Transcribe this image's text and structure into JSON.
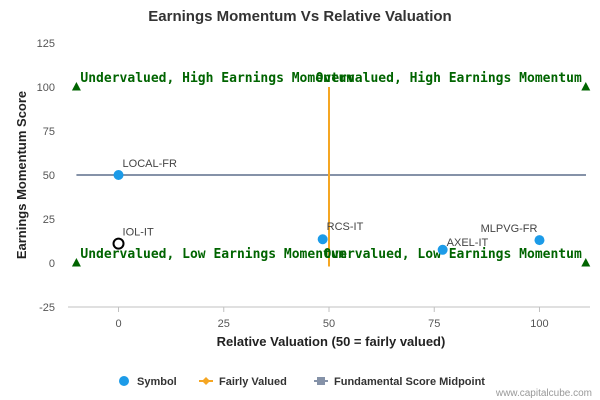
{
  "chart_data": {
    "type": "scatter",
    "title": "Earnings Momentum Vs Relative Valuation",
    "xlabel": "Relative Valuation (50 = fairly valued)",
    "ylabel": "Earnings Momentum Score",
    "xlim": [
      -12,
      112
    ],
    "ylim": [
      -25,
      125
    ],
    "x_ticks": [
      0,
      25,
      50,
      75,
      100
    ],
    "y_ticks": [
      -25,
      0,
      25,
      50,
      75,
      100,
      125
    ],
    "grid": false,
    "legend_position": "bottom-center",
    "colors": {
      "symbol": "#1c9be8",
      "fairly_valued": "#f5a623",
      "midpoint": "#8592a8",
      "quadrant_text": "#006400",
      "triangle": "#006400"
    },
    "points": [
      {
        "label": "LOCAL-FR",
        "x": 0,
        "y": 50,
        "style": "filled"
      },
      {
        "label": "IOL-IT",
        "x": 0,
        "y": 11,
        "style": "hollow"
      },
      {
        "label": "RCS-IT",
        "x": 48.5,
        "y": 13.5,
        "style": "filled"
      },
      {
        "label": "AXEL-IT",
        "x": 77,
        "y": 7.5,
        "style": "filled"
      },
      {
        "label": "MLPVG-FR",
        "x": 100,
        "y": 13,
        "style": "filled"
      }
    ],
    "fairly_valued_line": {
      "x": 50,
      "y_range": [
        -2,
        100
      ]
    },
    "midpoint_line": {
      "y": 50
    },
    "quadrant_labels": [
      {
        "text": "Undervalued, High Earnings Momentum",
        "x": -10,
        "y": 100
      },
      {
        "text": "Overvalued, High Earnings Momentum",
        "x": 111,
        "y": 100
      },
      {
        "text": "Undervalued, Low Earnings Momentum",
        "x": -10,
        "y": 0
      },
      {
        "text": "Overvalued, Low Earnings Momentum",
        "x": 111,
        "y": 0
      }
    ],
    "legend": [
      {
        "name": "Symbol",
        "marker": "circle"
      },
      {
        "name": "Fairly Valued",
        "marker": "line-diamond"
      },
      {
        "name": "Fundamental Score Midpoint",
        "marker": "line-square"
      }
    ]
  },
  "credit": "www.capitalcube.com"
}
